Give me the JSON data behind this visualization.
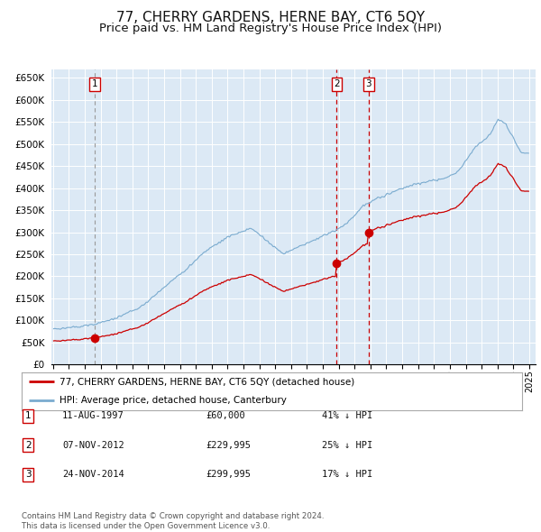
{
  "title": "77, CHERRY GARDENS, HERNE BAY, CT6 5QY",
  "subtitle": "Price paid vs. HM Land Registry's House Price Index (HPI)",
  "title_fontsize": 11,
  "subtitle_fontsize": 9.5,
  "bg_color": "#dce9f5",
  "grid_color": "#ffffff",
  "fig_bg": "#ffffff",
  "sale_prices": [
    60000,
    229995,
    299995
  ],
  "sale_labels": [
    "1",
    "2",
    "3"
  ],
  "sale_label_info": [
    {
      "num": "1",
      "date": "11-AUG-1997",
      "price": "£60,000",
      "hpi": "41% ↓ HPI"
    },
    {
      "num": "2",
      "date": "07-NOV-2012",
      "price": "£229,995",
      "hpi": "25% ↓ HPI"
    },
    {
      "num": "3",
      "date": "24-NOV-2014",
      "price": "£299,995",
      "hpi": "17% ↓ HPI"
    }
  ],
  "ylim": [
    0,
    670000
  ],
  "yticks": [
    0,
    50000,
    100000,
    150000,
    200000,
    250000,
    300000,
    350000,
    400000,
    450000,
    500000,
    550000,
    600000,
    650000
  ],
  "ytick_labels": [
    "£0",
    "£50K",
    "£100K",
    "£150K",
    "£200K",
    "£250K",
    "£300K",
    "£350K",
    "£400K",
    "£450K",
    "£500K",
    "£550K",
    "£600K",
    "£650K"
  ],
  "red_line_color": "#cc0000",
  "blue_line_color": "#7aabcf",
  "sale_dot_color": "#cc0000",
  "vline_color": "#cc0000",
  "legend_label_red": "77, CHERRY GARDENS, HERNE BAY, CT6 5QY (detached house)",
  "legend_label_blue": "HPI: Average price, detached house, Canterbury",
  "footer_text": "Contains HM Land Registry data © Crown copyright and database right 2024.\nThis data is licensed under the Open Government Licence v3.0.",
  "x_start_year": 1995,
  "x_end_year": 2025
}
